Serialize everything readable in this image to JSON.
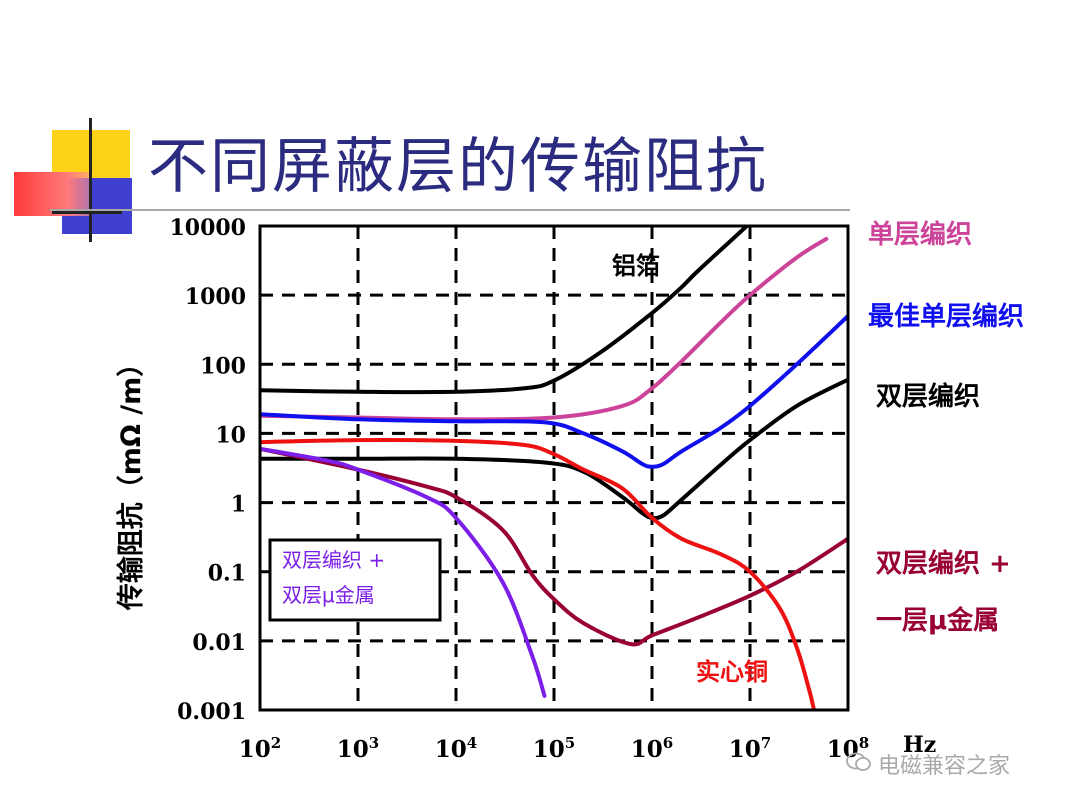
{
  "page": {
    "title": "不同屏蔽层的传输阻抗",
    "watermark": "电磁兼容之家"
  },
  "chart_data": {
    "type": "line",
    "title": "不同屏蔽层的传输阻抗",
    "xlabel": "Hz",
    "ylabel": "传输阻抗（mΩ /m）",
    "x_scale": "log",
    "y_scale": "log",
    "xlim": [
      100,
      100000000
    ],
    "ylim": [
      0.001,
      10000
    ],
    "grid": "dashed",
    "x_ticks": [
      {
        "value": 100,
        "base": "10",
        "exp": "2"
      },
      {
        "value": 1000,
        "base": "10",
        "exp": "3"
      },
      {
        "value": 10000,
        "base": "10",
        "exp": "4"
      },
      {
        "value": 100000,
        "base": "10",
        "exp": "5"
      },
      {
        "value": 1000000,
        "base": "10",
        "exp": "6"
      },
      {
        "value": 10000000,
        "base": "10",
        "exp": "7"
      },
      {
        "value": 100000000,
        "base": "10",
        "exp": "8"
      }
    ],
    "y_ticks": [
      {
        "value": 10000,
        "label": "10000"
      },
      {
        "value": 1000,
        "label": "1000"
      },
      {
        "value": 100,
        "label": "100"
      },
      {
        "value": 10,
        "label": "10"
      },
      {
        "value": 1,
        "label": "1"
      },
      {
        "value": 0.1,
        "label": "0.1"
      },
      {
        "value": 0.01,
        "label": "0.01"
      },
      {
        "value": 0.001,
        "label": "0.001"
      }
    ],
    "series": [
      {
        "id": "al-foil",
        "name": "铝箔",
        "color": "#000000",
        "points": [
          [
            100,
            42
          ],
          [
            1000,
            40
          ],
          [
            10000,
            40
          ],
          [
            50000,
            45
          ],
          [
            100000,
            58
          ],
          [
            300000,
            150
          ],
          [
            1000000,
            550
          ],
          [
            2000000,
            1300
          ],
          [
            3000000,
            2300
          ],
          [
            10000000,
            11000
          ]
        ]
      },
      {
        "id": "single-braid",
        "name": "单层编织",
        "color": "#cc4499",
        "points": [
          [
            100,
            18
          ],
          [
            1000,
            17
          ],
          [
            10000,
            16
          ],
          [
            100000,
            17
          ],
          [
            500000,
            25
          ],
          [
            1000000,
            45
          ],
          [
            2000000,
            110
          ],
          [
            5000000,
            400
          ],
          [
            10000000,
            1000
          ],
          [
            30000000,
            3500
          ],
          [
            60000000,
            6500
          ]
        ]
      },
      {
        "id": "best-single-braid",
        "name": "最佳单层编织",
        "color": "#1010ee",
        "points": [
          [
            100,
            19
          ],
          [
            1000,
            16
          ],
          [
            10000,
            15
          ],
          [
            80000,
            14.5
          ],
          [
            200000,
            10
          ],
          [
            500000,
            5.5
          ],
          [
            800000,
            3.6
          ],
          [
            1000000,
            3.3
          ],
          [
            1300000,
            3.6
          ],
          [
            2000000,
            5.5
          ],
          [
            5000000,
            12
          ],
          [
            10000000,
            25
          ],
          [
            30000000,
            100
          ],
          [
            100000000,
            500
          ]
        ]
      },
      {
        "id": "double-braid",
        "name": "双层编织",
        "color": "#000000",
        "points": [
          [
            100,
            4.3
          ],
          [
            1000,
            4.3
          ],
          [
            10000,
            4.3
          ],
          [
            80000,
            3.8
          ],
          [
            200000,
            2.8
          ],
          [
            500000,
            1.2
          ],
          [
            800000,
            0.7
          ],
          [
            1000000,
            0.6
          ],
          [
            1300000,
            0.65
          ],
          [
            2000000,
            1.1
          ],
          [
            5000000,
            3.5
          ],
          [
            10000000,
            8
          ],
          [
            30000000,
            25
          ],
          [
            100000000,
            60
          ]
        ]
      },
      {
        "id": "double-braid-mu",
        "name": "双层编织 + 一层μ金属",
        "color": "#990033",
        "points": [
          [
            100,
            6
          ],
          [
            1000,
            3
          ],
          [
            5000,
            1.7
          ],
          [
            10000,
            1.2
          ],
          [
            30000,
            0.4
          ],
          [
            60000,
            0.09
          ],
          [
            100000,
            0.04
          ],
          [
            200000,
            0.018
          ],
          [
            600000,
            0.009
          ],
          [
            1000000,
            0.012
          ],
          [
            3000000,
            0.022
          ],
          [
            10000000,
            0.045
          ],
          [
            30000000,
            0.1
          ],
          [
            100000000,
            0.3
          ]
        ]
      },
      {
        "id": "solid-copper",
        "name": "实心铜",
        "color": "#ee1111",
        "points": [
          [
            100,
            7.5
          ],
          [
            1000,
            8
          ],
          [
            10000,
            7.8
          ],
          [
            50000,
            6.8
          ],
          [
            100000,
            5
          ],
          [
            200000,
            3
          ],
          [
            500000,
            1.6
          ],
          [
            1000000,
            0.6
          ],
          [
            2000000,
            0.3
          ],
          [
            5000000,
            0.18
          ],
          [
            10000000,
            0.1
          ],
          [
            20000000,
            0.03
          ],
          [
            30000000,
            0.008
          ],
          [
            40000000,
            0.002
          ],
          [
            45000000,
            0.001
          ]
        ]
      },
      {
        "id": "double-braid-double-mu",
        "name": "双层编织 + 双层μ金属",
        "color": "#7a1ee8",
        "points": [
          [
            100,
            6
          ],
          [
            500,
            4
          ],
          [
            1000,
            3
          ],
          [
            5000,
            1.2
          ],
          [
            10000,
            0.6
          ],
          [
            30000,
            0.07
          ],
          [
            60000,
            0.006
          ],
          [
            80000,
            0.0016
          ]
        ]
      }
    ],
    "annotations": {
      "al_foil": "铝箔",
      "single_braid": "单层编织",
      "best_single_braid": "最佳单层编织",
      "double_braid": "双层编织",
      "double_braid_mu_line1": "双层编织 +",
      "double_braid_mu_line2": "一层μ金属",
      "solid_copper": "实心铜",
      "double_double_line1": "双层编织 +",
      "double_double_line2": "双层μ金属"
    }
  }
}
